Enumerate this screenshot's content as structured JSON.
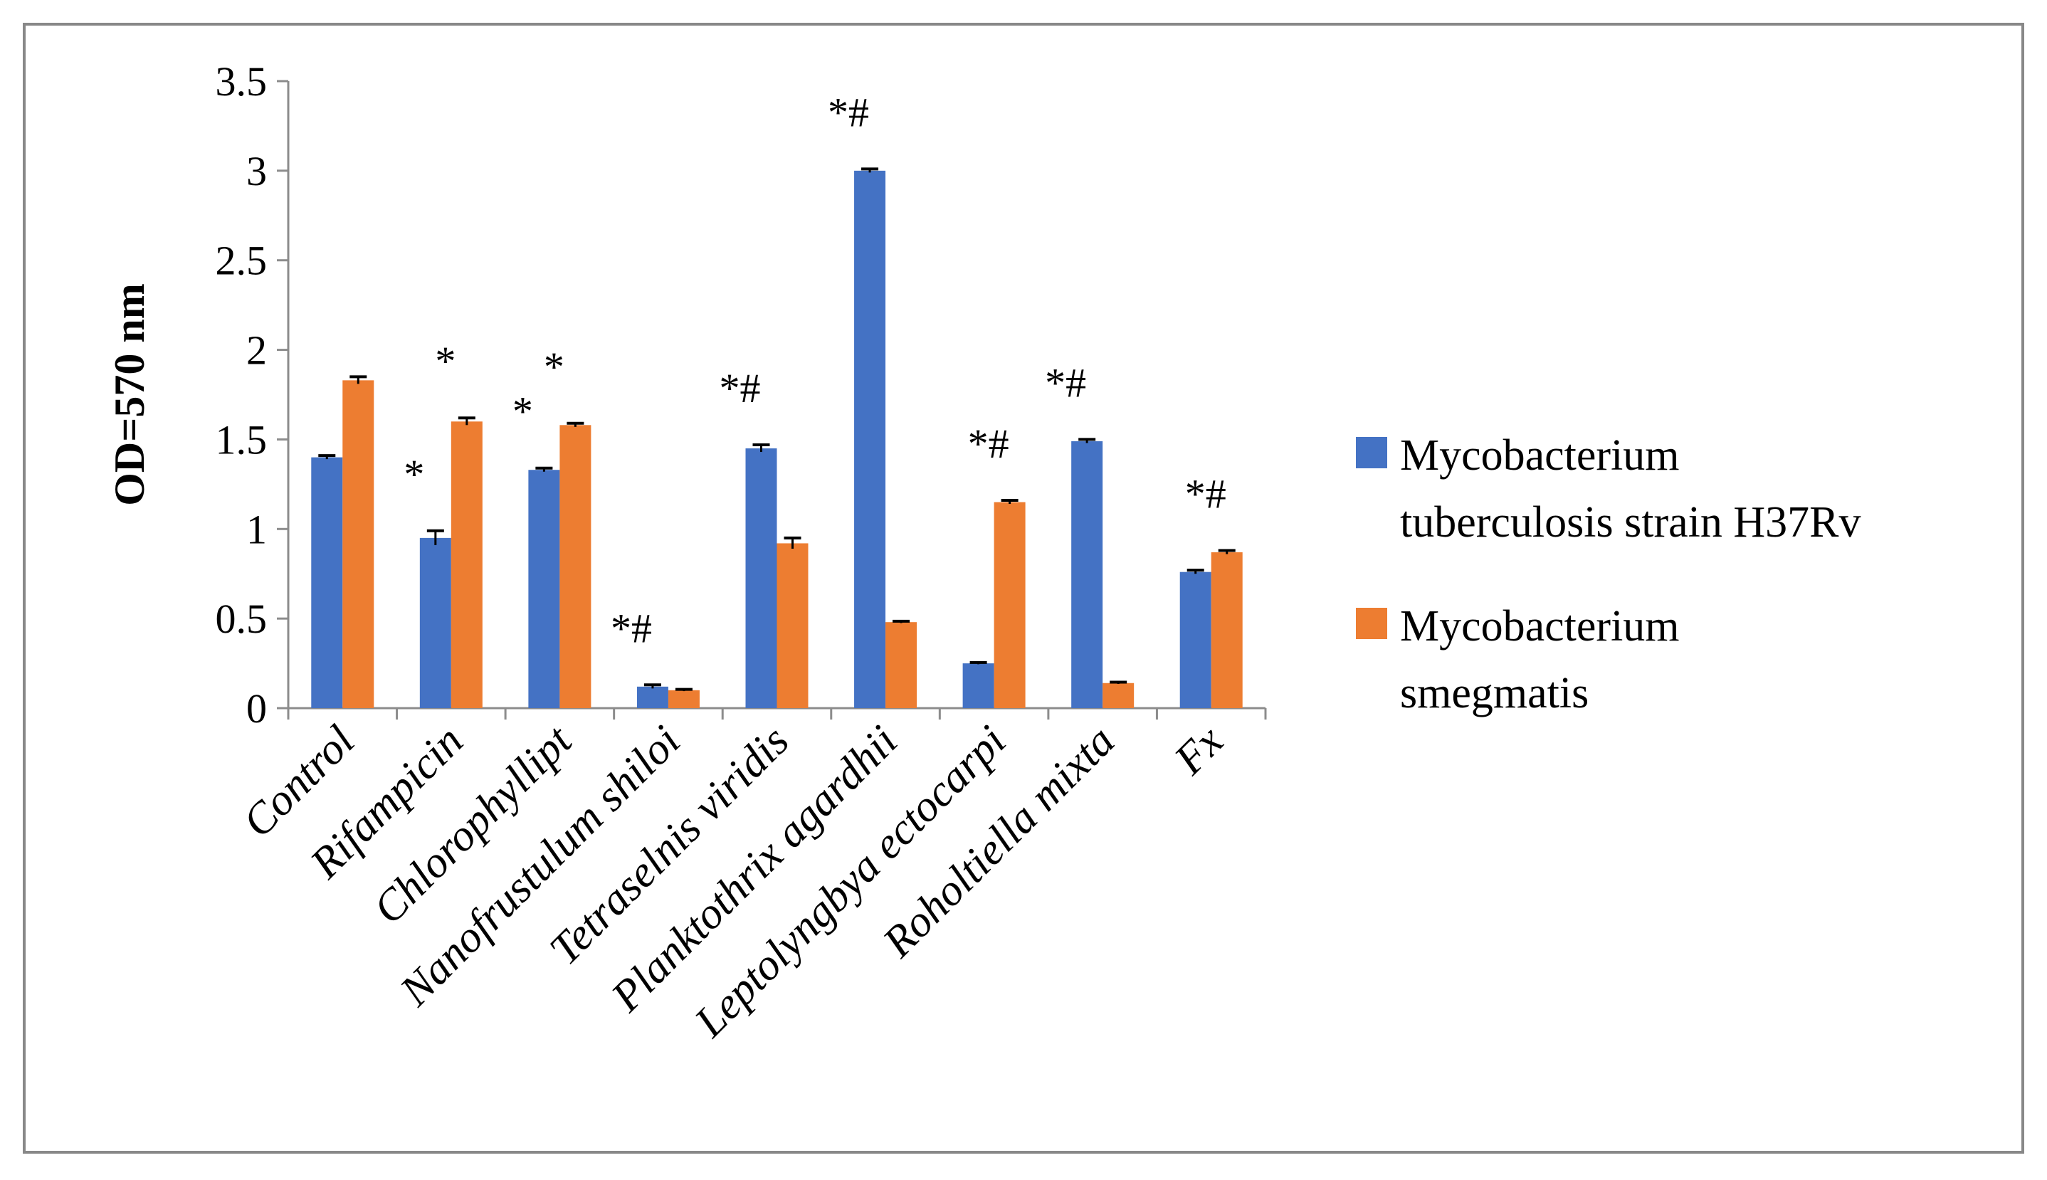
{
  "chart_data": {
    "type": "bar",
    "title": "",
    "xlabel": "",
    "ylabel": "OD=570 nm",
    "ylim": [
      0,
      3.5
    ],
    "yticks": [
      "0",
      "0.5",
      "1",
      "1.5",
      "2",
      "2.5",
      "3",
      "3.5"
    ],
    "ytick_values": [
      0,
      0.5,
      1,
      1.5,
      2,
      2.5,
      3,
      3.5
    ],
    "grid": false,
    "legend_position": "right",
    "categories": [
      "Control",
      "Rifampicin",
      "Chlorophyllipt",
      "Nanofrustulum shiloi",
      "Tetraselnis viridis",
      "Planktothrix agardhii",
      "Leptolyngbya ectocarpi",
      "Roholtiella mixta",
      "Fx"
    ],
    "series": [
      {
        "name": "Mycobacterium tuberculosis strain H37Rv",
        "legend_lines": [
          "Mycobacterium",
          "tuberculosis strain H37Rv"
        ],
        "color": "#4472C4",
        "values": [
          1.4,
          0.95,
          1.33,
          0.12,
          1.45,
          3.0,
          0.25,
          1.49,
          0.76
        ],
        "errors": [
          0.01,
          0.04,
          0.01,
          0.01,
          0.02,
          0.01,
          0.005,
          0.01,
          0.01
        ],
        "annotations": [
          "",
          "*",
          "*",
          "*#",
          "*#",
          "*#",
          "",
          "*#",
          ""
        ]
      },
      {
        "name": "Mycobacterium smegmatis",
        "legend_lines": [
          "Mycobacterium",
          "smegmatis"
        ],
        "color": "#ED7D31",
        "values": [
          1.83,
          1.6,
          1.58,
          0.1,
          0.92,
          0.48,
          1.15,
          0.14,
          0.87
        ],
        "errors": [
          0.02,
          0.02,
          0.01,
          0.005,
          0.03,
          0.005,
          0.01,
          0.005,
          0.01
        ],
        "annotations": [
          "",
          "*",
          "*",
          "",
          "",
          "",
          "*#",
          "",
          "*#"
        ]
      }
    ]
  },
  "colors": {
    "frame": "#888888",
    "axis": "#8c8c8c",
    "error_bar": "#000000"
  }
}
